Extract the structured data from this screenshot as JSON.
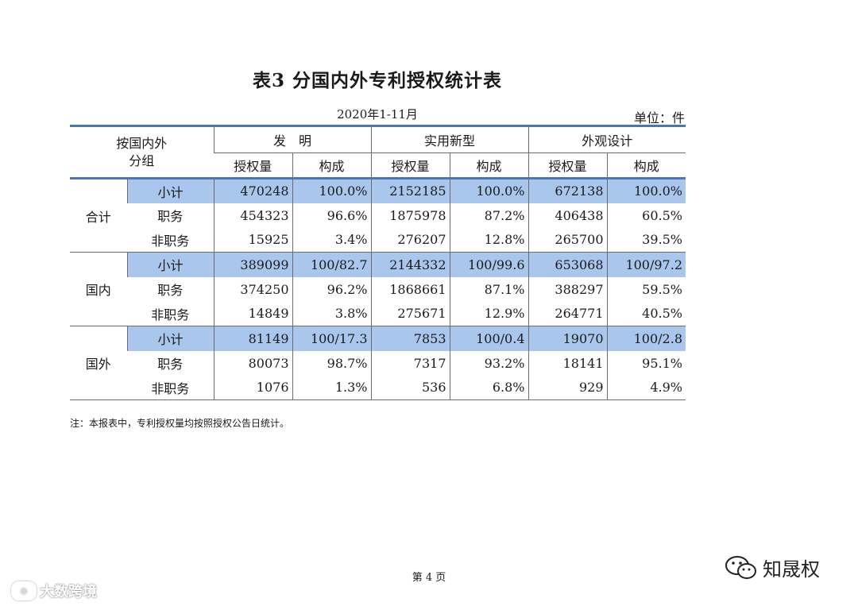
{
  "title": "表3  分国内外专利授权统计表",
  "period": "2020年1-11月",
  "unit": "单位：件",
  "header": {
    "group_label_line1": "按国内外",
    "group_label_line2": "分组",
    "categories": [
      "发　明",
      "实用新型",
      "外观设计"
    ],
    "sub_headers": [
      "授权量",
      "构成",
      "授权量",
      "构成",
      "授权量",
      "构成"
    ]
  },
  "groups": [
    {
      "name": "合计",
      "rows": [
        {
          "label": "小计",
          "values": [
            "470248",
            "100.0%",
            "2152185",
            "100.0%",
            "672138",
            "100.0%"
          ]
        },
        {
          "label": "职务",
          "values": [
            "454323",
            "96.6%",
            "1875978",
            "87.2%",
            "406438",
            "60.5%"
          ]
        },
        {
          "label": "非职务",
          "values": [
            "15925",
            "3.4%",
            "276207",
            "12.8%",
            "265700",
            "39.5%"
          ]
        }
      ]
    },
    {
      "name": "国内",
      "rows": [
        {
          "label": "小计",
          "values": [
            "389099",
            "100/82.7",
            "2144332",
            "100/99.6",
            "653068",
            "100/97.2"
          ]
        },
        {
          "label": "职务",
          "values": [
            "374250",
            "96.2%",
            "1868661",
            "87.1%",
            "388297",
            "59.5%"
          ]
        },
        {
          "label": "非职务",
          "values": [
            "14849",
            "3.8%",
            "275671",
            "12.9%",
            "264771",
            "40.5%"
          ]
        }
      ]
    },
    {
      "name": "国外",
      "rows": [
        {
          "label": "小计",
          "values": [
            "81149",
            "100/17.3",
            "7853",
            "100/0.4",
            "19070",
            "100/2.8"
          ]
        },
        {
          "label": "职务",
          "values": [
            "80073",
            "98.7%",
            "7317",
            "93.2%",
            "18141",
            "95.1%"
          ]
        },
        {
          "label": "非职务",
          "values": [
            "1076",
            "1.3%",
            "536",
            "6.8%",
            "929",
            "4.9%"
          ]
        }
      ]
    }
  ],
  "note": "注：本报表中，专利授权量均按照授权公告日统计。",
  "page_number": "第 4 页",
  "watermark_left": "大数跨境",
  "watermark_right": "知晟权",
  "colors": {
    "accent_line": "#4a76b8",
    "subtotal_fill": "#a9c6ec"
  }
}
